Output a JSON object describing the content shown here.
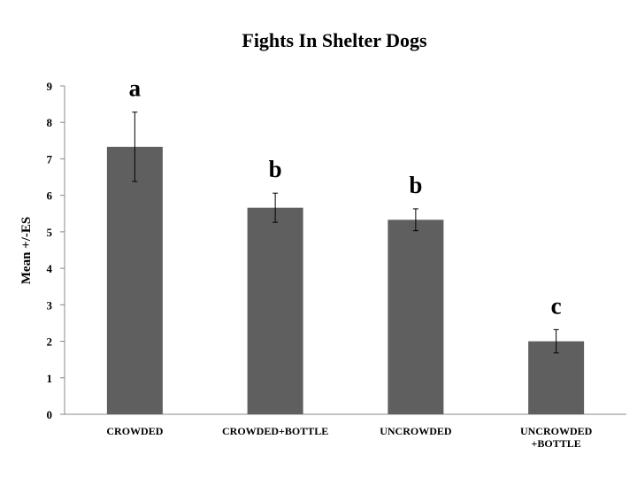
{
  "chart_data": {
    "type": "bar",
    "title": "Fights In Shelter Dogs",
    "xlabel": "",
    "ylabel": "Mean +/-ES",
    "ylim": [
      0,
      9
    ],
    "yticks": [
      0,
      1,
      2,
      3,
      4,
      5,
      6,
      7,
      8,
      9
    ],
    "grid": false,
    "bar_color": "#5f5f5f",
    "categories": [
      [
        "CROWDED"
      ],
      [
        "CROWDED+BOTTLE"
      ],
      [
        "UNCROWDED"
      ],
      [
        "UNCROWDED",
        "+BOTTLE"
      ]
    ],
    "values": [
      7.33,
      5.66,
      5.33,
      2.0
    ],
    "errors": [
      0.95,
      0.4,
      0.3,
      0.32
    ],
    "significance_labels": [
      "a",
      "b",
      "b",
      "c"
    ]
  }
}
